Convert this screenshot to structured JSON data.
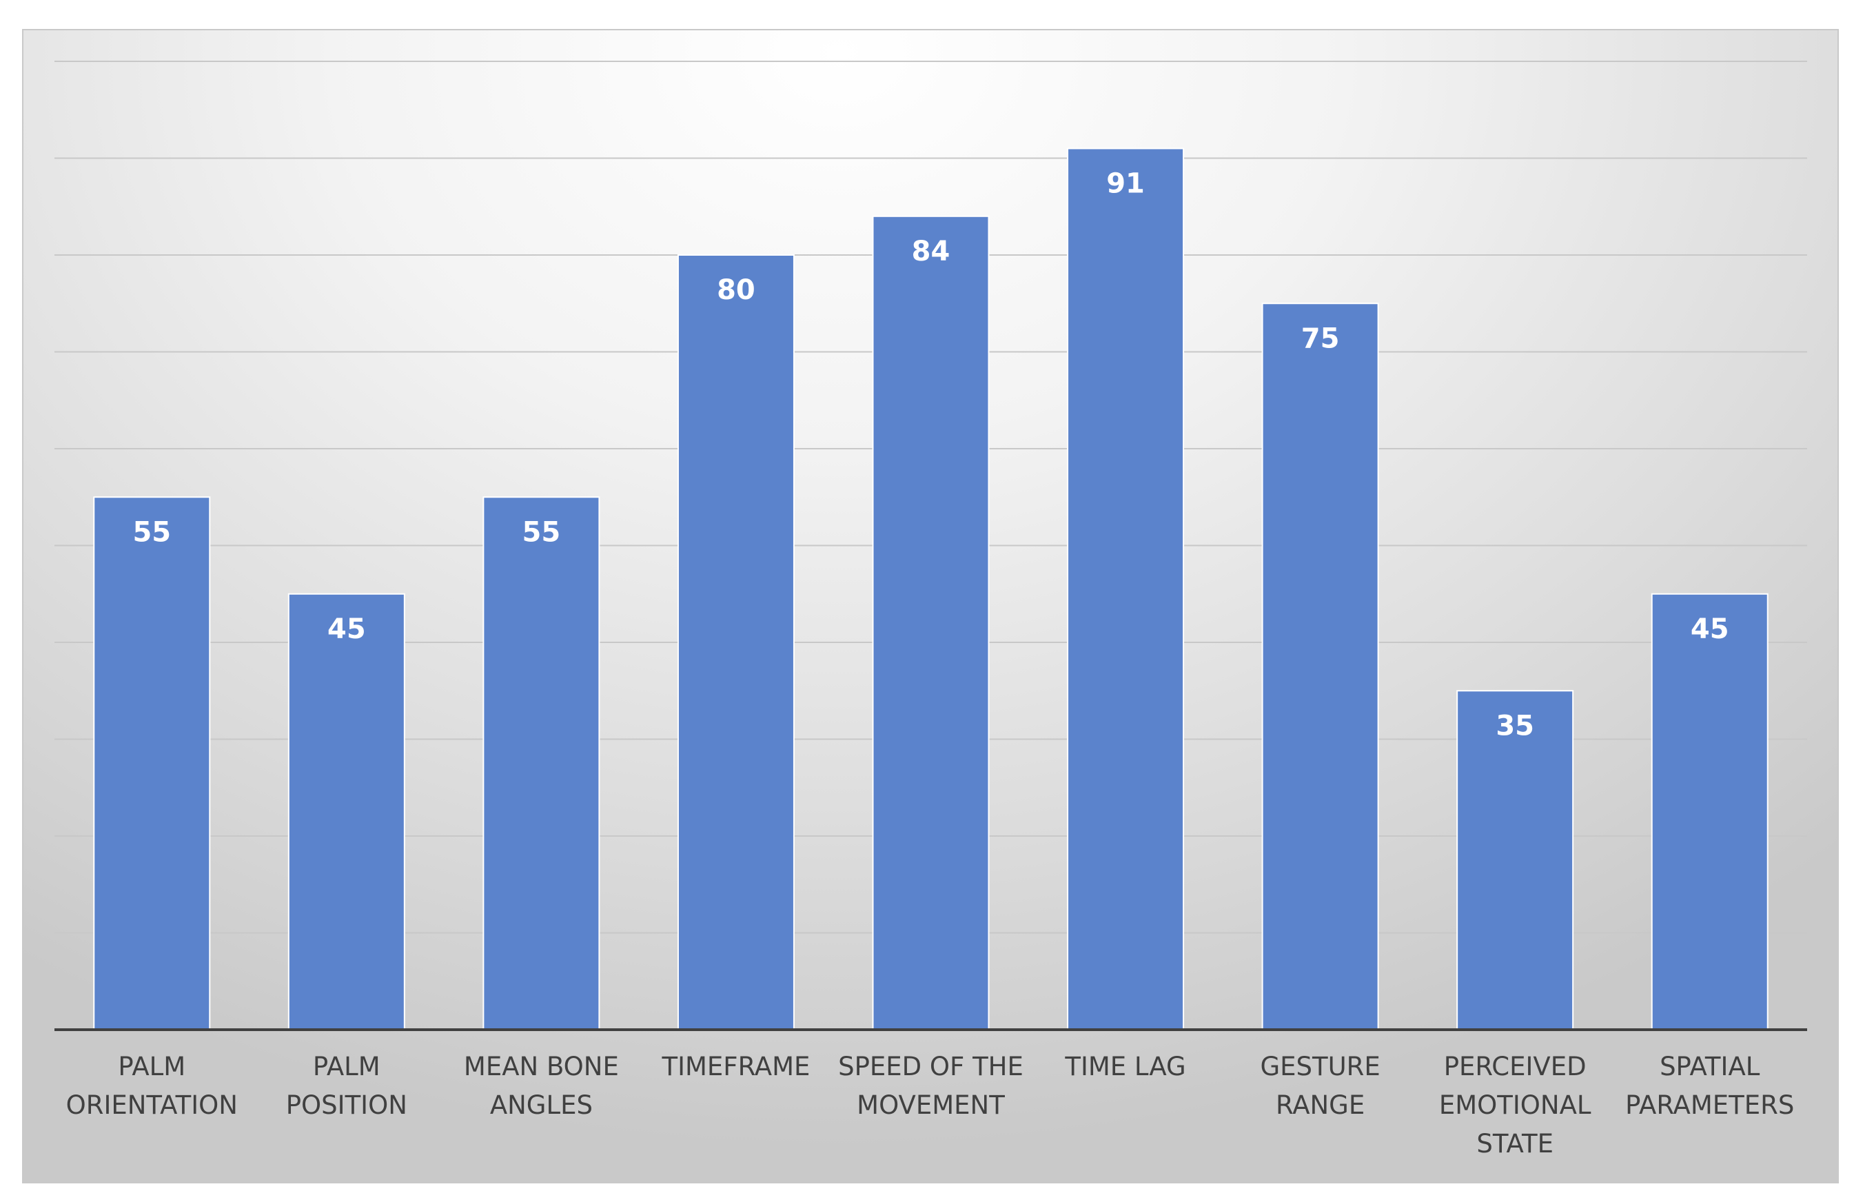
{
  "chart_data": {
    "type": "bar",
    "categories": [
      [
        "PALM",
        "ORIENTATION"
      ],
      [
        "PALM",
        "POSITION"
      ],
      [
        "MEAN BONE",
        "ANGLES"
      ],
      [
        "TIMEFRAME"
      ],
      [
        "SPEED OF THE",
        "MOVEMENT"
      ],
      [
        "TIME LAG"
      ],
      [
        "GESTURE",
        "RANGE"
      ],
      [
        "PERCEIVED",
        "EMOTIONAL",
        "STATE"
      ],
      [
        "SPATIAL",
        "PARAMETERS"
      ]
    ],
    "values": [
      55,
      45,
      55,
      80,
      84,
      91,
      75,
      35,
      45
    ],
    "data_labels": [
      "55",
      "45",
      "55",
      "80",
      "84",
      "91",
      "75",
      "35",
      "45"
    ],
    "ylim": [
      0,
      100
    ],
    "grid_step": 10,
    "grid": true,
    "colors": {
      "bar": "#5b83cc",
      "bar_border": "#ffffff",
      "gridline": "#c8c8c8",
      "axis": "#404040",
      "data_label": "#ffffff",
      "tick_label": "#404040"
    }
  }
}
